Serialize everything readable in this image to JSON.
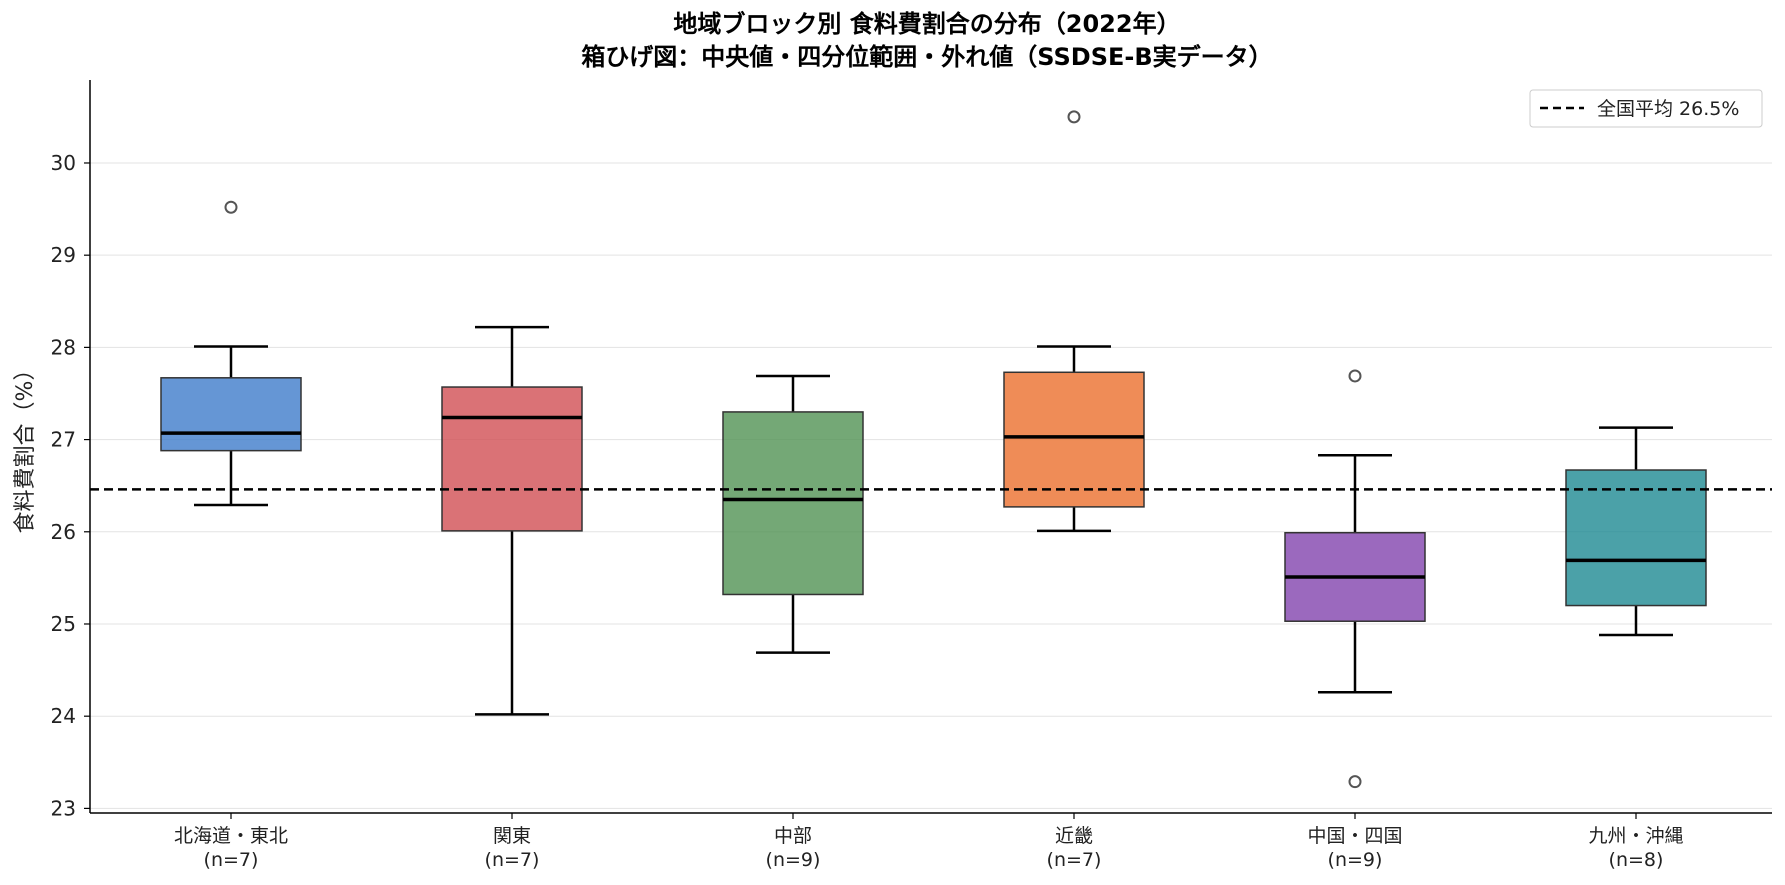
{
  "chart_data": {
    "type": "box",
    "title": "地域ブロック別 食料費割合の分布（2022年）",
    "subtitle": "箱ひげ図：中央値・四分位範囲・外れ値（SSDSE-B実データ）",
    "ylabel": "食料費割合（%）",
    "ylim": [
      22.95,
      30.9
    ],
    "yticks": [
      "23",
      "24",
      "25",
      "26",
      "27",
      "28",
      "29",
      "30"
    ],
    "grid": "horizontal",
    "legend_position": "top-right",
    "reference_line": {
      "label": "全国平均 26.5%",
      "value": 26.46,
      "style": "dashed",
      "color": "#000000"
    },
    "series": [
      {
        "name": "北海道・東北",
        "n_label": "(n=7)",
        "color": "#3a78c9",
        "whisker_low": 26.29,
        "q1": 26.88,
        "median": 27.07,
        "q3": 27.67,
        "whisker_high": 28.01,
        "outliers": [
          29.52
        ]
      },
      {
        "name": "関東",
        "n_label": "(n=7)",
        "color": "#d04a50",
        "whisker_low": 24.02,
        "q1": 26.01,
        "median": 27.24,
        "q3": 27.57,
        "whisker_high": 28.22,
        "outliers": []
      },
      {
        "name": "中部",
        "n_label": "(n=9)",
        "color": "#4d8f4f",
        "whisker_low": 24.69,
        "q1": 25.32,
        "median": 26.35,
        "q3": 27.3,
        "whisker_high": 27.69,
        "outliers": []
      },
      {
        "name": "近畿",
        "n_label": "(n=7)",
        "color": "#eb6c28",
        "whisker_low": 26.01,
        "q1": 26.27,
        "median": 27.03,
        "q3": 27.73,
        "whisker_high": 28.01,
        "outliers": [
          30.5
        ]
      },
      {
        "name": "中国・四国",
        "n_label": "(n=9)",
        "color": "#7f3fac",
        "whisker_low": 24.26,
        "q1": 25.03,
        "median": 25.51,
        "q3": 25.99,
        "whisker_high": 26.83,
        "outliers": [
          27.69,
          23.29
        ]
      },
      {
        "name": "九州・沖縄",
        "n_label": "(n=8)",
        "color": "#18868f",
        "whisker_low": 24.88,
        "q1": 25.2,
        "median": 25.69,
        "q3": 26.67,
        "whisker_high": 27.13,
        "outliers": []
      }
    ]
  }
}
